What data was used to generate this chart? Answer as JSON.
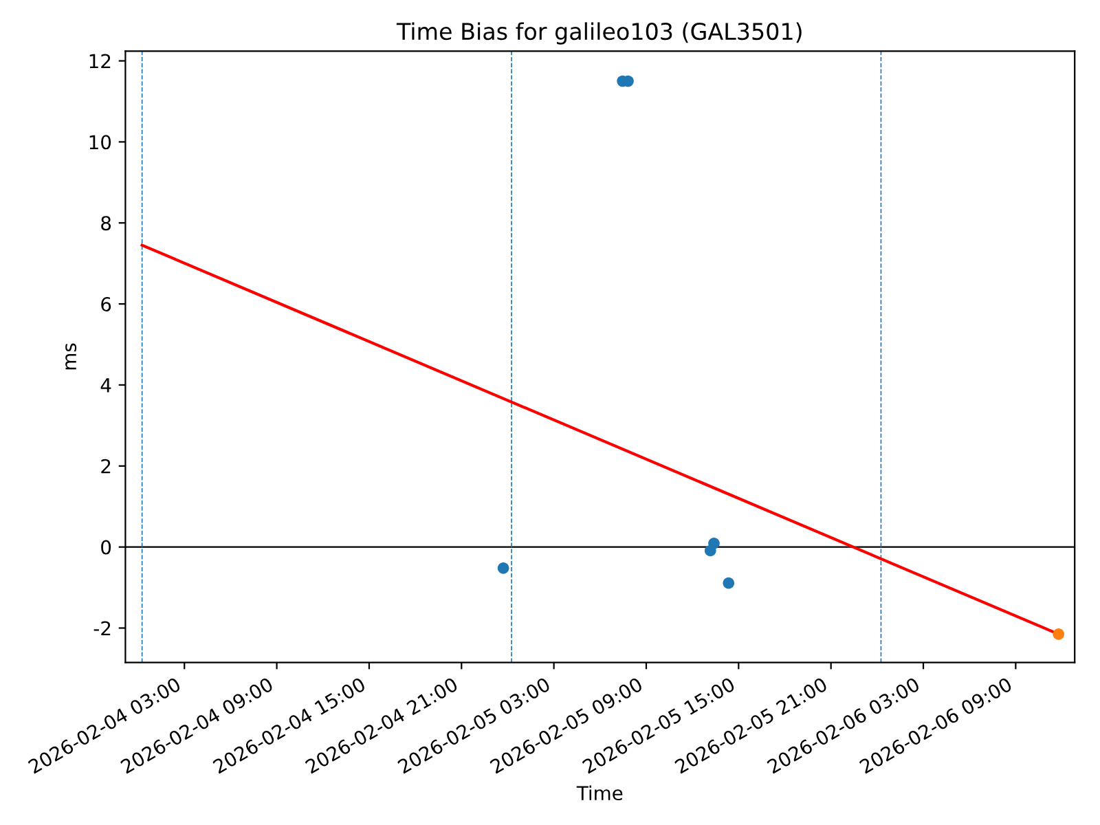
{
  "chart_data": {
    "type": "scatter",
    "title": "Time Bias for galileo103 (GAL3501)",
    "xlabel": "Time",
    "ylabel": "ms",
    "marker": "circle",
    "series": [
      {
        "color": "#1f77b4",
        "x": [
          "2026-02-04T23:43",
          "2026-02-05T07:28",
          "2026-02-05T07:49",
          "2026-02-05T13:10",
          "2026-02-05T13:24",
          "2026-02-05T14:21"
        ],
        "values": [
          -0.52,
          11.5,
          11.5,
          -0.09,
          0.09,
          -0.89
        ]
      },
      {
        "type": "line",
        "color": "#ff0000",
        "marker": "none",
        "line_style": "solid",
        "x": [
          "2026-02-04T00:15",
          "2026-02-06T11:47"
        ],
        "values": [
          7.45,
          -2.15
        ]
      },
      {
        "color": "#ff7f0e",
        "x": [
          "2026-02-06T11:47"
        ],
        "values": [
          -2.15
        ]
      }
    ],
    "ref_lines": [
      {
        "axis": "y",
        "value": 0,
        "color": "#000000",
        "line_style": "solid"
      },
      {
        "axis": "x",
        "value": "2026-02-04T00:15",
        "color": "#1f77b4",
        "line_style": "dashed"
      },
      {
        "axis": "x",
        "value": "2026-02-05T00:15",
        "color": "#1f77b4",
        "line_style": "dashed"
      },
      {
        "axis": "x",
        "value": "2026-02-06T00:15",
        "color": "#1f77b4",
        "line_style": "dashed"
      }
    ],
    "xlim": [
      "2026-02-03T23:10",
      "2026-02-06T12:50"
    ],
    "xticks": [
      {
        "value": "2026-02-04T03:00",
        "label": "2026-02-04 03:00"
      },
      {
        "value": "2026-02-04T09:00",
        "label": "2026-02-04 09:00"
      },
      {
        "value": "2026-02-04T15:00",
        "label": "2026-02-04 15:00"
      },
      {
        "value": "2026-02-04T21:00",
        "label": "2026-02-04 21:00"
      },
      {
        "value": "2026-02-05T03:00",
        "label": "2026-02-05 03:00"
      },
      {
        "value": "2026-02-05T09:00",
        "label": "2026-02-05 09:00"
      },
      {
        "value": "2026-02-05T15:00",
        "label": "2026-02-05 15:00"
      },
      {
        "value": "2026-02-05T21:00",
        "label": "2026-02-05 21:00"
      },
      {
        "value": "2026-02-06T03:00",
        "label": "2026-02-06 03:00"
      },
      {
        "value": "2026-02-06T09:00",
        "label": "2026-02-06 09:00"
      }
    ],
    "ylim": [
      -2.85,
      12.24
    ],
    "yticks": [
      -2,
      0,
      2,
      4,
      6,
      8,
      10,
      12
    ],
    "grid": false
  }
}
